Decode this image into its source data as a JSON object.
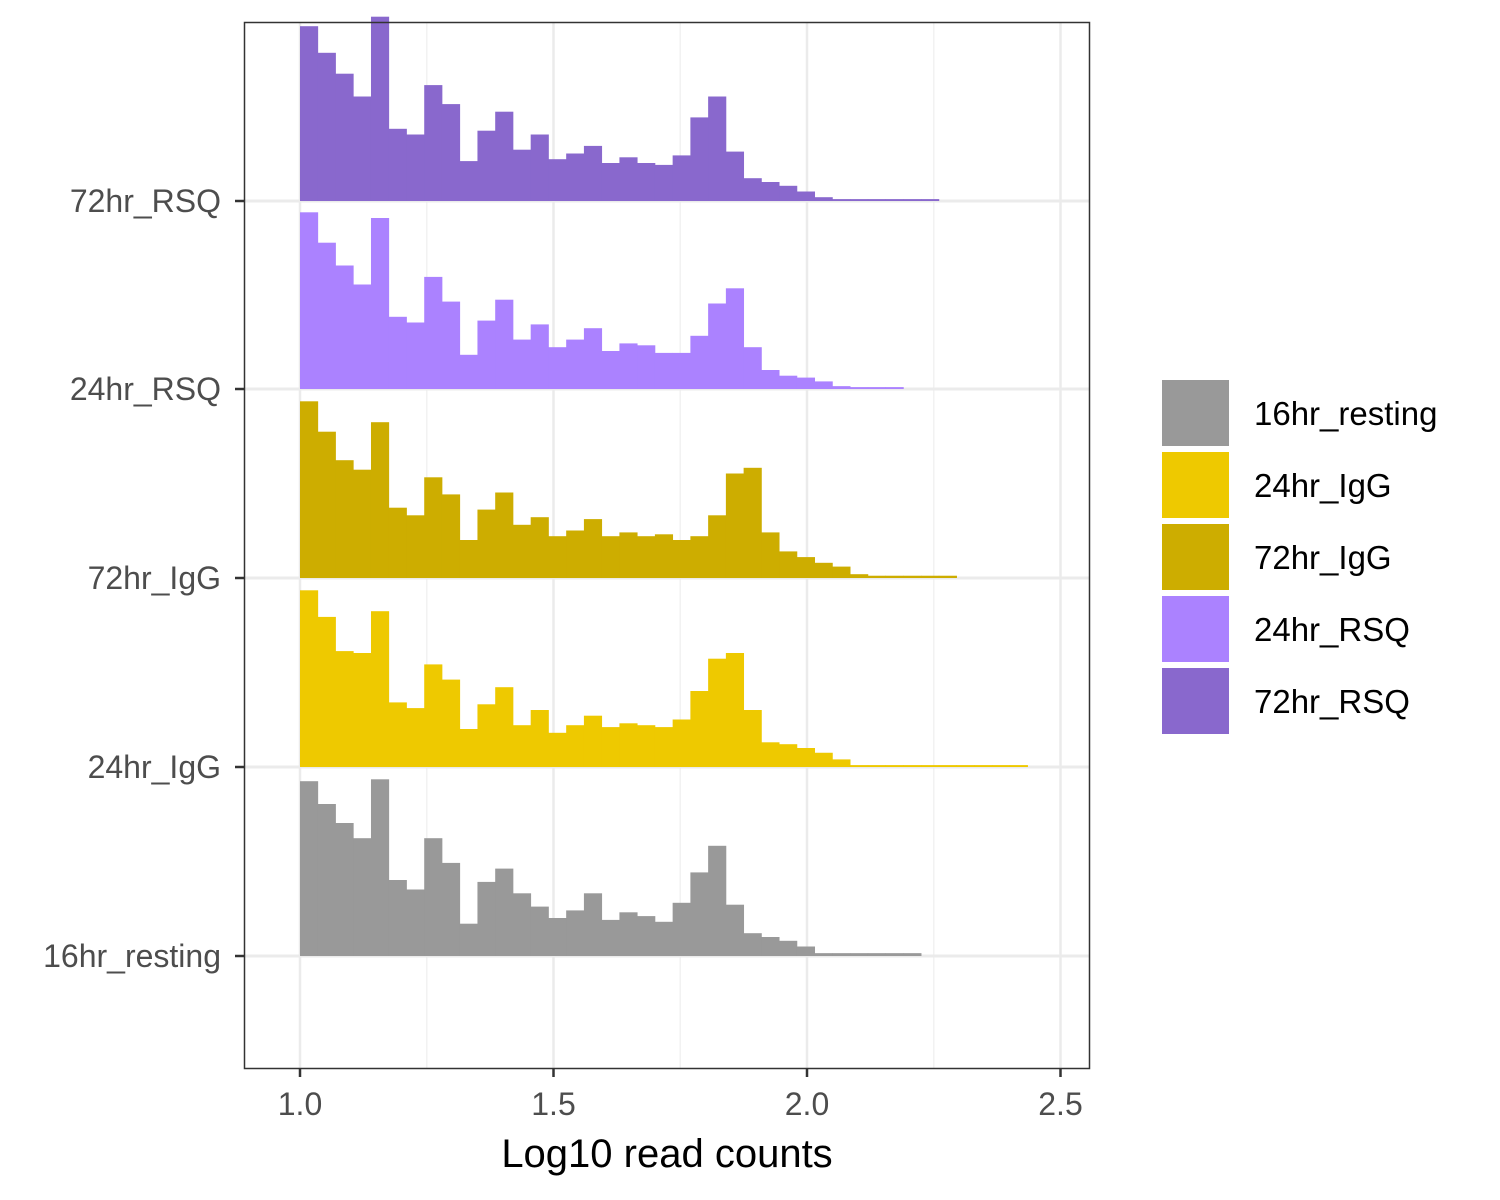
{
  "chart_data": {
    "type": "histogram-ridgeline",
    "xlabel": "Log10 read counts",
    "ylabel": "",
    "xlim": [
      0.89,
      2.56
    ],
    "x_ticks": [
      "1.0",
      "1.5",
      "2.0",
      "2.5"
    ],
    "grid": true,
    "legend_placement": "right",
    "bin_width": 0.035,
    "bin_start": 1.0,
    "categories": [
      "16hr_resting",
      "24hr_IgG",
      "72hr_IgG",
      "24hr_RSQ",
      "72hr_RSQ"
    ],
    "legend": [
      {
        "name": "16hr_resting",
        "color": "#999999"
      },
      {
        "name": "24hr_IgG",
        "color": "#EEC900"
      },
      {
        "name": "72hr_IgG",
        "color": "#CDAD00"
      },
      {
        "name": "24hr_RSQ",
        "color": "#AB82FF"
      },
      {
        "name": "72hr_RSQ",
        "color": "#8968CD"
      }
    ],
    "series": [
      {
        "name": "16hr_resting",
        "color": "#999999",
        "values": [
          0.92,
          0.8,
          0.7,
          0.62,
          0.93,
          0.4,
          0.35,
          0.62,
          0.49,
          0.17,
          0.39,
          0.46,
          0.33,
          0.26,
          0.2,
          0.24,
          0.33,
          0.19,
          0.23,
          0.21,
          0.18,
          0.28,
          0.44,
          0.58,
          0.27,
          0.12,
          0.1,
          0.08,
          0.05,
          0.015,
          0.015,
          0.015,
          0.015,
          0.015,
          0.015,
          0,
          0,
          0,
          0,
          0,
          0,
          0,
          0,
          0,
          0
        ]
      },
      {
        "name": "24hr_IgG",
        "color": "#EEC900",
        "values": [
          0.93,
          0.79,
          0.61,
          0.6,
          0.82,
          0.34,
          0.31,
          0.54,
          0.46,
          0.2,
          0.33,
          0.42,
          0.22,
          0.3,
          0.18,
          0.22,
          0.27,
          0.21,
          0.23,
          0.22,
          0.21,
          0.25,
          0.4,
          0.57,
          0.6,
          0.3,
          0.13,
          0.12,
          0.1,
          0.075,
          0.04,
          0.01,
          0.01,
          0.01,
          0.01,
          0.01,
          0.01,
          0.01,
          0.01,
          0.01,
          0.01,
          0,
          0,
          0,
          0
        ]
      },
      {
        "name": "72hr_IgG",
        "color": "#CDAD00",
        "values": [
          0.93,
          0.77,
          0.62,
          0.57,
          0.82,
          0.37,
          0.33,
          0.53,
          0.44,
          0.2,
          0.36,
          0.45,
          0.28,
          0.32,
          0.22,
          0.25,
          0.31,
          0.22,
          0.24,
          0.22,
          0.23,
          0.2,
          0.22,
          0.33,
          0.55,
          0.58,
          0.24,
          0.14,
          0.11,
          0.08,
          0.06,
          0.02,
          0.012,
          0.012,
          0.012,
          0.012,
          0.012,
          0,
          0,
          0,
          0,
          0,
          0,
          0,
          0
        ]
      },
      {
        "name": "24hr_RSQ",
        "color": "#AB82FF",
        "values": [
          0.93,
          0.77,
          0.65,
          0.55,
          0.9,
          0.38,
          0.35,
          0.59,
          0.46,
          0.18,
          0.36,
          0.47,
          0.26,
          0.34,
          0.22,
          0.26,
          0.32,
          0.2,
          0.24,
          0.23,
          0.19,
          0.19,
          0.28,
          0.45,
          0.53,
          0.22,
          0.1,
          0.07,
          0.06,
          0.04,
          0.015,
          0.01,
          0.01,
          0.01,
          0,
          0,
          0,
          0,
          0,
          0,
          0,
          0,
          0,
          0,
          0
        ]
      },
      {
        "name": "72hr_RSQ",
        "color": "#8968CD",
        "values": [
          0.92,
          0.78,
          0.67,
          0.55,
          0.97,
          0.38,
          0.35,
          0.61,
          0.51,
          0.21,
          0.37,
          0.47,
          0.27,
          0.35,
          0.22,
          0.25,
          0.29,
          0.2,
          0.23,
          0.2,
          0.19,
          0.24,
          0.44,
          0.55,
          0.26,
          0.12,
          0.1,
          0.08,
          0.05,
          0.02,
          0.01,
          0.01,
          0.01,
          0.01,
          0.01,
          0.01,
          0,
          0,
          0,
          0,
          0,
          0,
          0,
          0,
          0
        ]
      }
    ]
  }
}
